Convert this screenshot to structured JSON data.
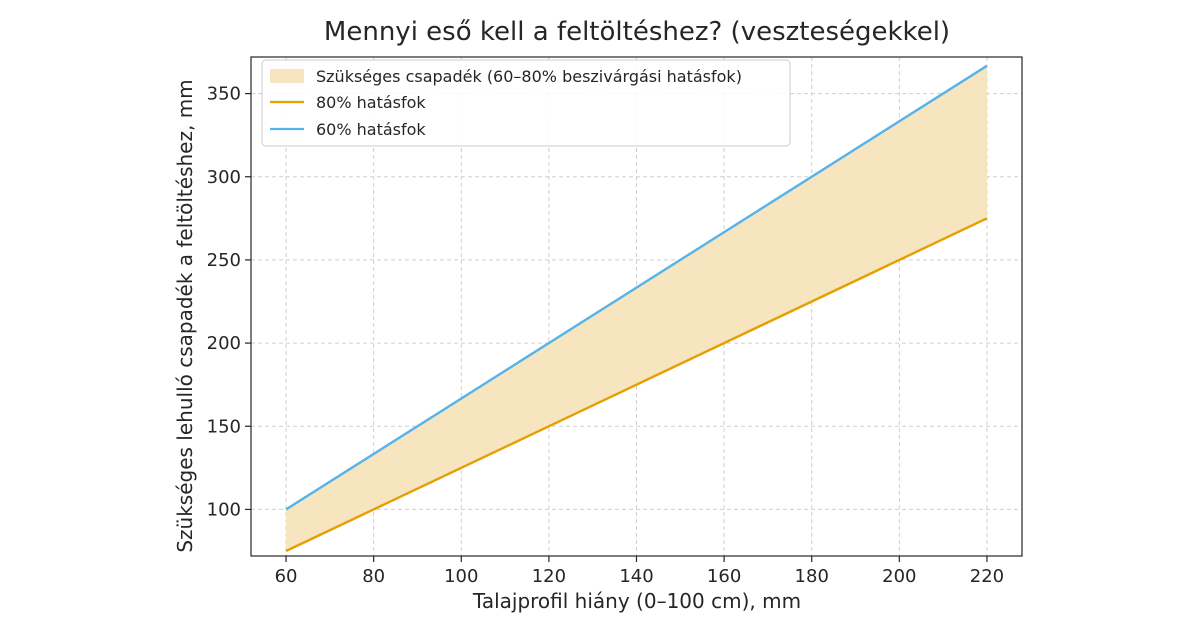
{
  "chart_data": {
    "type": "line",
    "title": "Mennyi eső kell a feltöltéshez? (veszteségekkel)",
    "xlabel": "Talajprofil hiány (0–100 cm), mm",
    "ylabel": "Szükséges lehulló csapadék a feltöltéshez, mm",
    "xlim": [
      52,
      228
    ],
    "ylim": [
      72,
      372
    ],
    "xticks": [
      60,
      80,
      100,
      120,
      140,
      160,
      180,
      200,
      220
    ],
    "yticks": [
      100,
      150,
      200,
      250,
      300,
      350
    ],
    "x": [
      60,
      220
    ],
    "grid": true,
    "legend_position": "top-left",
    "band": {
      "name": "Szükséges csapadék (60–80% beszivárgási hatásfok)",
      "lower": [
        75,
        275
      ],
      "upper": [
        100,
        366.7
      ],
      "color": "#f6e5bf"
    },
    "series": [
      {
        "name": "80% hatásfok",
        "values": [
          75,
          275
        ],
        "color": "#e69f00"
      },
      {
        "name": "60% hatásfok",
        "values": [
          100,
          366.7
        ],
        "color": "#56b4e9"
      }
    ]
  }
}
